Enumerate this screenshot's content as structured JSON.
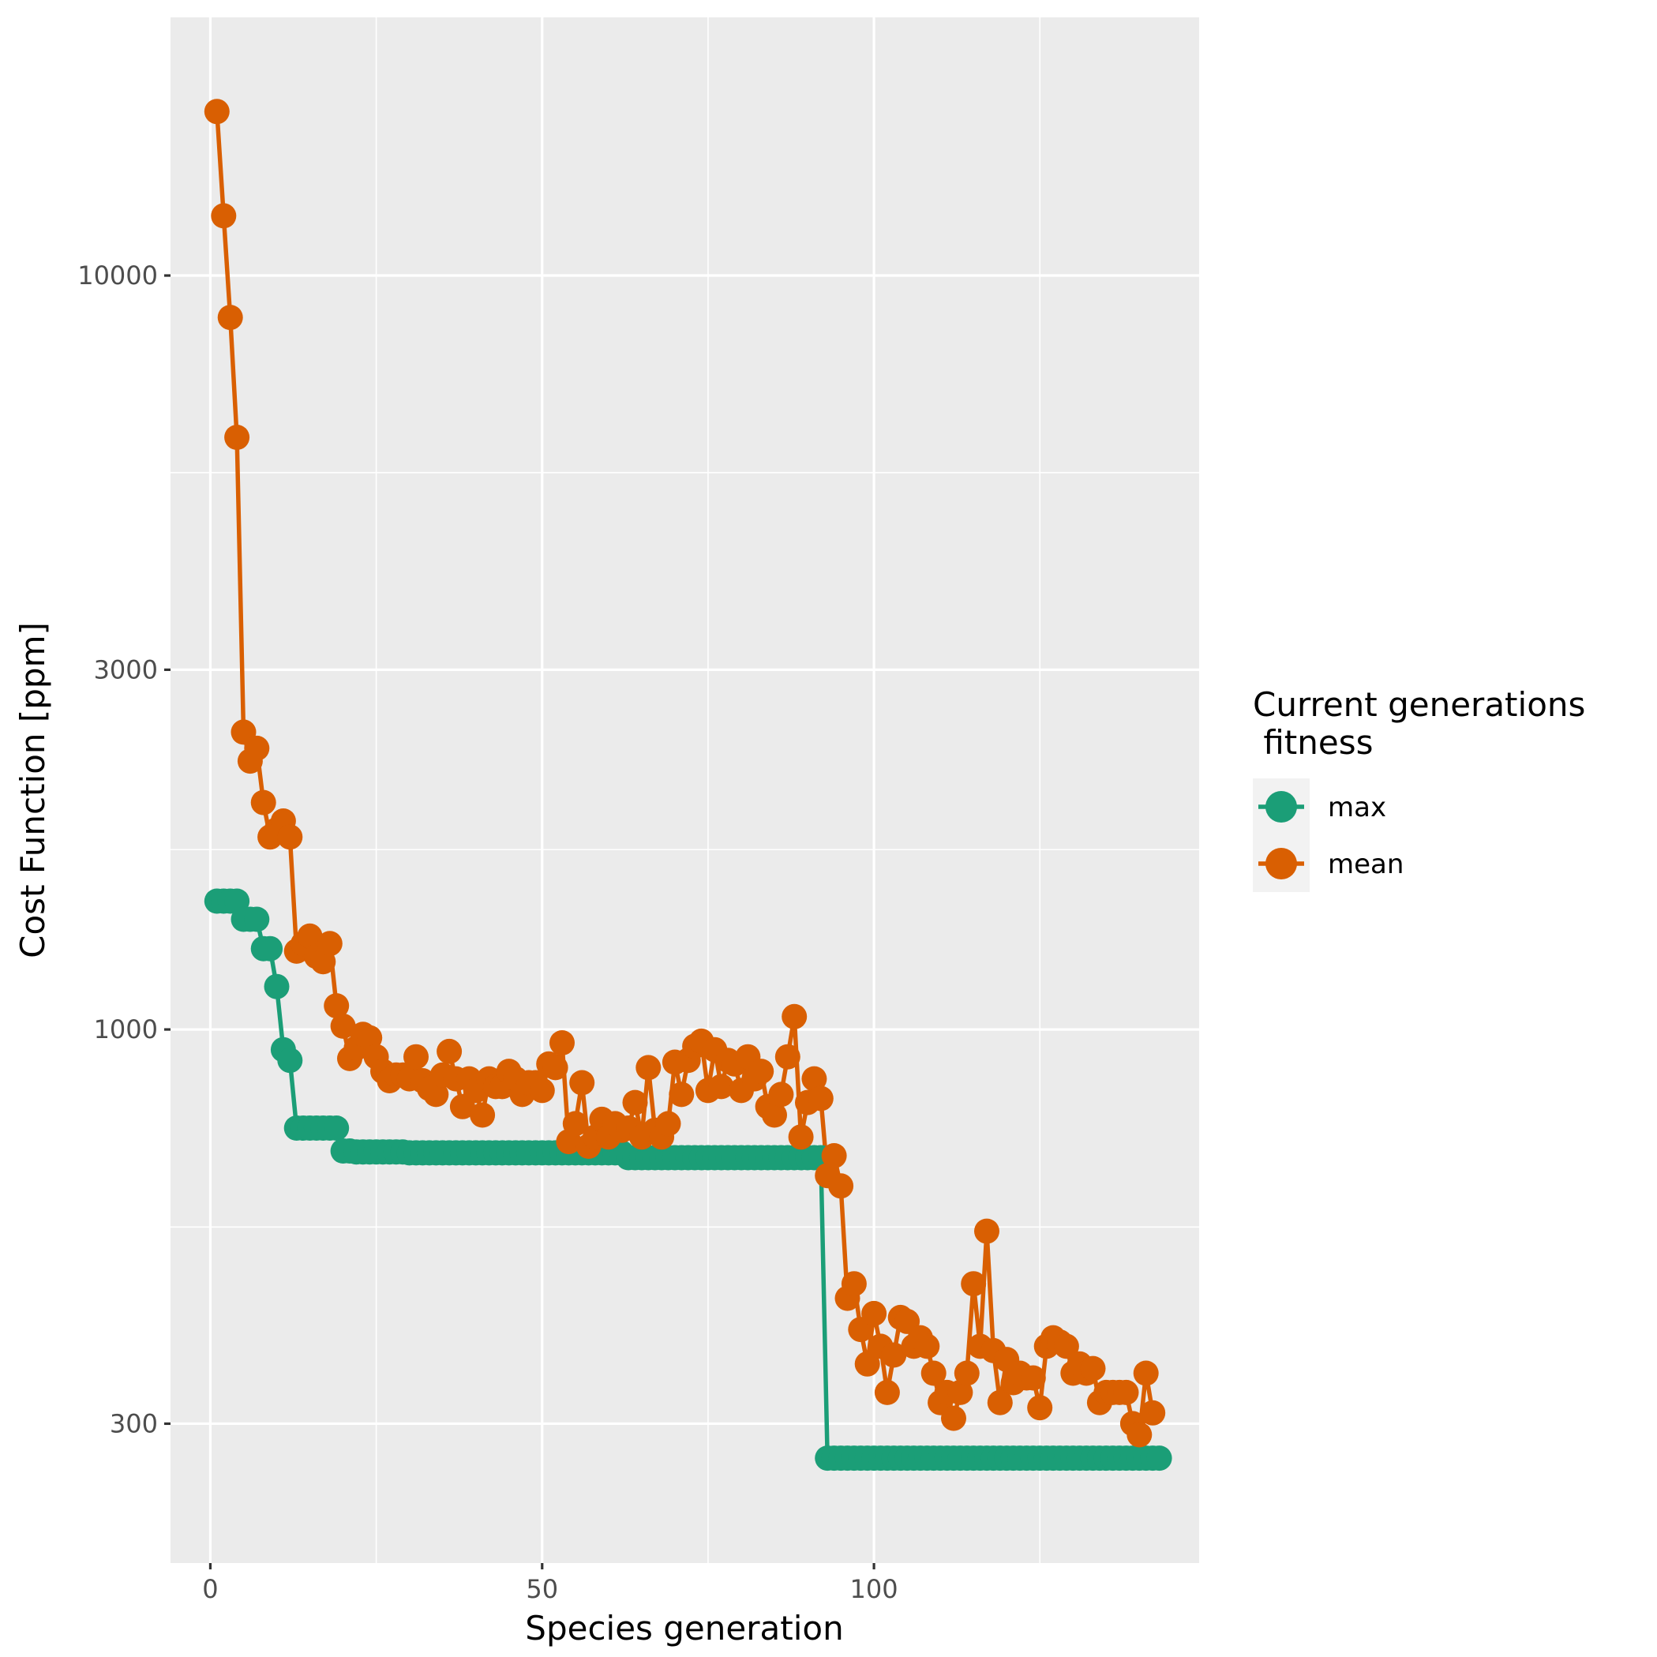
{
  "chart_data": {
    "type": "line",
    "xlabel": "Species generation",
    "ylabel": "Cost Function [ppm]",
    "xlim": [
      -6,
      149
    ],
    "ylim": [
      196,
      22000
    ],
    "y_scale": "log",
    "x_ticks": [
      0,
      50,
      100
    ],
    "x_tick_labels": [
      "0",
      "50",
      "100"
    ],
    "y_ticks": [
      300,
      1000,
      3000,
      10000
    ],
    "y_tick_labels": [
      "300",
      "1000",
      "3000",
      "10000"
    ],
    "y_minor_ticks": [
      547,
      1732,
      5477
    ],
    "x_minor_ticks": [
      25,
      75,
      125
    ],
    "grid": true,
    "legend": {
      "title_lines": [
        "Current generations",
        " fitness"
      ],
      "placement": "right"
    },
    "series": [
      {
        "name": "max",
        "color": "#1b9e77",
        "points": [
          [
            1,
            1480
          ],
          [
            2,
            1480
          ],
          [
            3,
            1480
          ],
          [
            4,
            1480
          ],
          [
            5,
            1400
          ],
          [
            6,
            1400
          ],
          [
            7,
            1400
          ],
          [
            8,
            1280
          ],
          [
            9,
            1280
          ],
          [
            10,
            1140
          ],
          [
            11,
            940
          ],
          [
            12,
            910
          ],
          [
            13,
            740
          ],
          [
            14,
            740
          ],
          [
            15,
            740
          ],
          [
            16,
            740
          ],
          [
            17,
            740
          ],
          [
            18,
            740
          ],
          [
            19,
            740
          ],
          [
            20,
            690
          ],
          [
            21,
            690
          ],
          [
            22,
            688
          ],
          [
            23,
            688
          ],
          [
            24,
            688
          ],
          [
            25,
            688
          ],
          [
            26,
            688
          ],
          [
            27,
            688
          ],
          [
            28,
            688
          ],
          [
            29,
            688
          ],
          [
            30,
            686
          ],
          [
            31,
            686
          ],
          [
            32,
            686
          ],
          [
            33,
            686
          ],
          [
            34,
            686
          ],
          [
            35,
            686
          ],
          [
            36,
            686
          ],
          [
            37,
            686
          ],
          [
            38,
            686
          ],
          [
            39,
            686
          ],
          [
            40,
            686
          ],
          [
            41,
            686
          ],
          [
            42,
            686
          ],
          [
            43,
            686
          ],
          [
            44,
            686
          ],
          [
            45,
            686
          ],
          [
            46,
            686
          ],
          [
            47,
            686
          ],
          [
            48,
            686
          ],
          [
            49,
            686
          ],
          [
            50,
            686
          ],
          [
            51,
            686
          ],
          [
            52,
            686
          ],
          [
            53,
            686
          ],
          [
            54,
            686
          ],
          [
            55,
            686
          ],
          [
            56,
            686
          ],
          [
            57,
            686
          ],
          [
            58,
            686
          ],
          [
            59,
            686
          ],
          [
            60,
            686
          ],
          [
            61,
            686
          ],
          [
            62,
            686
          ],
          [
            63,
            676
          ],
          [
            64,
            676
          ],
          [
            65,
            676
          ],
          [
            66,
            676
          ],
          [
            67,
            676
          ],
          [
            68,
            676
          ],
          [
            69,
            676
          ],
          [
            70,
            676
          ],
          [
            71,
            676
          ],
          [
            72,
            676
          ],
          [
            73,
            676
          ],
          [
            74,
            676
          ],
          [
            75,
            676
          ],
          [
            76,
            676
          ],
          [
            77,
            676
          ],
          [
            78,
            676
          ],
          [
            79,
            676
          ],
          [
            80,
            676
          ],
          [
            81,
            676
          ],
          [
            82,
            676
          ],
          [
            83,
            676
          ],
          [
            84,
            676
          ],
          [
            85,
            676
          ],
          [
            86,
            676
          ],
          [
            87,
            676
          ],
          [
            88,
            676
          ],
          [
            89,
            676
          ],
          [
            90,
            676
          ],
          [
            91,
            676
          ],
          [
            92,
            676
          ],
          [
            93,
            270
          ],
          [
            94,
            270
          ],
          [
            95,
            270
          ],
          [
            96,
            270
          ],
          [
            97,
            270
          ],
          [
            98,
            270
          ],
          [
            99,
            270
          ],
          [
            100,
            270
          ],
          [
            101,
            270
          ],
          [
            102,
            270
          ],
          [
            103,
            270
          ],
          [
            104,
            270
          ],
          [
            105,
            270
          ],
          [
            106,
            270
          ],
          [
            107,
            270
          ],
          [
            108,
            270
          ],
          [
            109,
            270
          ],
          [
            110,
            270
          ],
          [
            111,
            270
          ],
          [
            112,
            270
          ],
          [
            113,
            270
          ],
          [
            114,
            270
          ],
          [
            115,
            270
          ],
          [
            116,
            270
          ],
          [
            117,
            270
          ],
          [
            118,
            270
          ],
          [
            119,
            270
          ],
          [
            120,
            270
          ],
          [
            121,
            270
          ],
          [
            122,
            270
          ],
          [
            123,
            270
          ],
          [
            124,
            270
          ],
          [
            125,
            270
          ],
          [
            126,
            270
          ],
          [
            127,
            270
          ],
          [
            128,
            270
          ],
          [
            129,
            270
          ],
          [
            130,
            270
          ],
          [
            131,
            270
          ],
          [
            132,
            270
          ],
          [
            133,
            270
          ],
          [
            134,
            270
          ],
          [
            135,
            270
          ],
          [
            136,
            270
          ],
          [
            137,
            270
          ],
          [
            138,
            270
          ],
          [
            139,
            270
          ],
          [
            140,
            270
          ],
          [
            141,
            270
          ],
          [
            142,
            270
          ],
          [
            143,
            270
          ]
        ]
      },
      {
        "name": "mean",
        "color": "#d95f02",
        "points": [
          [
            1,
            16500
          ],
          [
            2,
            12000
          ],
          [
            3,
            8800
          ],
          [
            4,
            6100
          ],
          [
            5,
            2480
          ],
          [
            6,
            2270
          ],
          [
            7,
            2360
          ],
          [
            8,
            2000
          ],
          [
            9,
            1800
          ],
          [
            10,
            1840
          ],
          [
            11,
            1890
          ],
          [
            12,
            1800
          ],
          [
            13,
            1270
          ],
          [
            14,
            1300
          ],
          [
            15,
            1330
          ],
          [
            16,
            1250
          ],
          [
            17,
            1230
          ],
          [
            18,
            1300
          ],
          [
            19,
            1075
          ],
          [
            20,
            1010
          ],
          [
            21,
            915
          ],
          [
            22,
            945
          ],
          [
            23,
            985
          ],
          [
            24,
            975
          ],
          [
            25,
            920
          ],
          [
            26,
            880
          ],
          [
            27,
            855
          ],
          [
            28,
            870
          ],
          [
            29,
            870
          ],
          [
            30,
            860
          ],
          [
            31,
            920
          ],
          [
            32,
            855
          ],
          [
            33,
            835
          ],
          [
            34,
            820
          ],
          [
            35,
            870
          ],
          [
            36,
            935
          ],
          [
            37,
            860
          ],
          [
            38,
            790
          ],
          [
            39,
            860
          ],
          [
            40,
            830
          ],
          [
            41,
            770
          ],
          [
            42,
            860
          ],
          [
            43,
            840
          ],
          [
            44,
            840
          ],
          [
            45,
            880
          ],
          [
            46,
            860
          ],
          [
            47,
            820
          ],
          [
            48,
            850
          ],
          [
            49,
            850
          ],
          [
            50,
            830
          ],
          [
            51,
            900
          ],
          [
            52,
            890
          ],
          [
            53,
            960
          ],
          [
            54,
            710
          ],
          [
            55,
            750
          ],
          [
            56,
            850
          ],
          [
            57,
            700
          ],
          [
            58,
            720
          ],
          [
            59,
            760
          ],
          [
            60,
            720
          ],
          [
            61,
            750
          ],
          [
            62,
            735
          ],
          [
            63,
            740
          ],
          [
            64,
            800
          ],
          [
            65,
            720
          ],
          [
            66,
            890
          ],
          [
            67,
            735
          ],
          [
            68,
            720
          ],
          [
            69,
            750
          ],
          [
            70,
            905
          ],
          [
            71,
            820
          ],
          [
            72,
            910
          ],
          [
            73,
            950
          ],
          [
            74,
            965
          ],
          [
            75,
            830
          ],
          [
            76,
            940
          ],
          [
            77,
            840
          ],
          [
            78,
            910
          ],
          [
            79,
            900
          ],
          [
            80,
            830
          ],
          [
            81,
            920
          ],
          [
            82,
            860
          ],
          [
            83,
            880
          ],
          [
            84,
            790
          ],
          [
            85,
            770
          ],
          [
            86,
            820
          ],
          [
            87,
            920
          ],
          [
            88,
            1040
          ],
          [
            89,
            720
          ],
          [
            90,
            800
          ],
          [
            91,
            860
          ],
          [
            92,
            810
          ],
          [
            93,
            640
          ],
          [
            94,
            680
          ],
          [
            95,
            620
          ],
          [
            96,
            440
          ],
          [
            97,
            460
          ],
          [
            98,
            400
          ],
          [
            99,
            360
          ],
          [
            100,
            420
          ],
          [
            101,
            380
          ],
          [
            102,
            330
          ],
          [
            103,
            370
          ],
          [
            104,
            415
          ],
          [
            105,
            410
          ],
          [
            106,
            380
          ],
          [
            107,
            390
          ],
          [
            108,
            380
          ],
          [
            109,
            350
          ],
          [
            110,
            320
          ],
          [
            111,
            330
          ],
          [
            112,
            305
          ],
          [
            113,
            330
          ],
          [
            114,
            350
          ],
          [
            115,
            460
          ],
          [
            116,
            380
          ],
          [
            117,
            540
          ],
          [
            118,
            375
          ],
          [
            119,
            320
          ],
          [
            120,
            365
          ],
          [
            121,
            340
          ],
          [
            122,
            350
          ],
          [
            123,
            345
          ],
          [
            124,
            345
          ],
          [
            125,
            315
          ],
          [
            126,
            380
          ],
          [
            127,
            390
          ],
          [
            128,
            385
          ],
          [
            129,
            380
          ],
          [
            130,
            350
          ],
          [
            131,
            360
          ],
          [
            132,
            350
          ],
          [
            133,
            355
          ],
          [
            134,
            320
          ],
          [
            135,
            330
          ],
          [
            136,
            330
          ],
          [
            137,
            330
          ],
          [
            138,
            330
          ],
          [
            139,
            300
          ],
          [
            140,
            290
          ],
          [
            141,
            350
          ],
          [
            142,
            310
          ]
        ]
      }
    ]
  }
}
